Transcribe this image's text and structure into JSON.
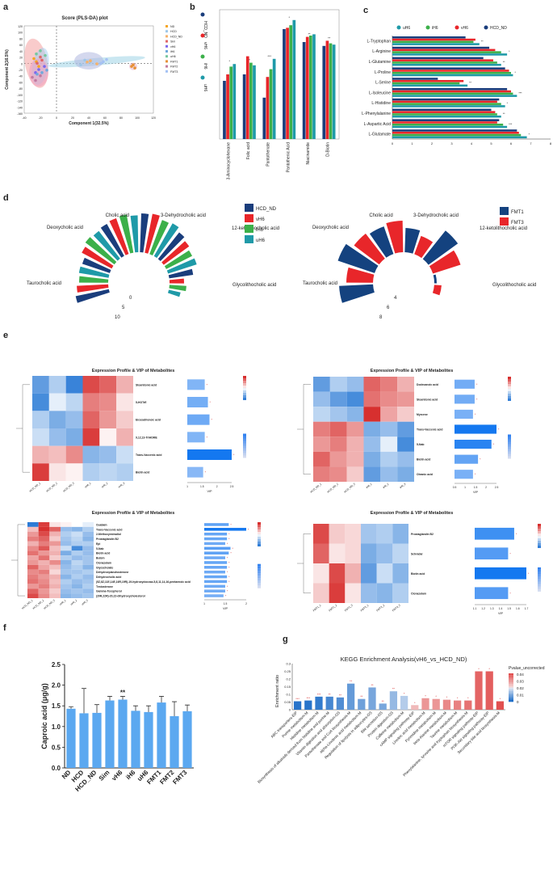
{
  "panel_labels": [
    "a",
    "b",
    "c",
    "d",
    "e",
    "f",
    "g"
  ],
  "colors": {
    "hcd_nd": "#1a3d7c",
    "vh6": "#e8262a",
    "ih6": "#3cb04a",
    "uh6": "#1f9aa8",
    "fmt1": "#14427f",
    "fmt3": "#e8262a",
    "bar_f": "#5ba8f0",
    "heat_red": "#d7302f",
    "heat_blue": "#2c7bd6"
  },
  "chart_data": [
    {
      "id": "a",
      "type": "scatter",
      "title": "Score (PLS-DA) plot",
      "xlabel": "Component 1(32.5%)",
      "ylabel": "Component 2(16.5%)",
      "xlim": [
        -40,
        120
      ],
      "ylim": [
        -160,
        120
      ],
      "xticks": [
        "-40",
        "-20",
        "0",
        "20",
        "40",
        "60",
        "80",
        "100",
        "120"
      ],
      "yticks": [
        "120",
        "100",
        "80",
        "60",
        "40",
        "20",
        "0",
        "-20",
        "-40",
        "-60",
        "-80",
        "-100",
        "-120",
        "-140",
        "-160"
      ],
      "legend": [
        "ND",
        "HCD",
        "HCD_ND",
        "Sim",
        "vH6",
        "iH6",
        "uH6",
        "FMT1",
        "FMT2",
        "FMT3"
      ],
      "series": [
        {
          "name": "ND",
          "x": [
            -28,
            -25,
            -22
          ],
          "y": [
            15,
            5,
            -10
          ]
        },
        {
          "name": "HCD",
          "x": [
            35,
            30,
            42
          ],
          "y": [
            10,
            -5,
            5
          ]
        },
        {
          "name": "HCD_ND",
          "x": [
            42,
            50,
            38
          ],
          "y": [
            8,
            -2,
            4
          ]
        },
        {
          "name": "Sim",
          "x": [
            -20,
            -18,
            -24
          ],
          "y": [
            20,
            10,
            0
          ]
        },
        {
          "name": "vH6",
          "x": [
            -22,
            -15,
            -26
          ],
          "y": [
            -20,
            -10,
            -30
          ]
        },
        {
          "name": "iH6",
          "x": [
            -18,
            -24,
            -12
          ],
          "y": [
            -30,
            -35,
            -22
          ]
        },
        {
          "name": "uH6",
          "x": [
            -25,
            -20,
            -14
          ],
          "y": [
            30,
            40,
            25
          ]
        },
        {
          "name": "FMT1",
          "x": [
            95,
            97,
            93
          ],
          "y": [
            -5,
            -15,
            -10
          ]
        },
        {
          "name": "FMT2",
          "x": [
            -30,
            -26,
            -20
          ],
          "y": [
            -45,
            -55,
            -40
          ]
        },
        {
          "name": "FMT3",
          "x": [
            58,
            62,
            55
          ],
          "y": [
            5,
            12,
            0
          ]
        }
      ]
    },
    {
      "id": "b",
      "type": "bar",
      "categories": [
        "3-Aminocyclohexane",
        "Folic acid",
        "Pantothenate",
        "Pantothenic Acid",
        "Niacinamide",
        "D-Biotin"
      ],
      "legend": [
        "HCD_ND",
        "vH6",
        "iH6",
        "uH6"
      ],
      "series": [
        {
          "name": "HCD_ND",
          "values": [
            4.5,
            5.0,
            3.2,
            8.5,
            7.5,
            7.2
          ]
        },
        {
          "name": "vH6",
          "values": [
            5.0,
            6.4,
            4.8,
            8.6,
            7.9,
            7.6
          ]
        },
        {
          "name": "iH6",
          "values": [
            5.6,
            5.9,
            5.4,
            8.8,
            8.0,
            7.4
          ]
        },
        {
          "name": "uH6",
          "values": [
            5.8,
            5.7,
            6.2,
            9.2,
            8.1,
            7.3
          ]
        }
      ],
      "annotations": [
        "*",
        "*",
        "*",
        "**",
        "***",
        "*",
        "**",
        "**"
      ]
    },
    {
      "id": "c",
      "type": "bar",
      "orientation": "horizontal",
      "legend": [
        "uH6",
        "iH6",
        "vH6",
        "HCD_ND"
      ],
      "categories": [
        "L-Tryptophan",
        "L-Arginine",
        "L-Glutamine",
        "L-Proline",
        "L-Serine",
        "L-Isoleucine",
        "L-Histidine",
        "L-Phenylalanine",
        "L-Aspartic Acid",
        "L-Glutamate"
      ],
      "xticks": [
        "0",
        "1",
        "2",
        "3",
        "4",
        "5",
        "6",
        "7",
        "8"
      ],
      "xlim": [
        0,
        8
      ],
      "series": [
        {
          "name": "HCD_ND",
          "values": [
            3.7,
            4.9,
            4.6,
            5.7,
            2.3,
            5.8,
            5.4,
            5.0,
            5.4,
            6.3
          ]
        },
        {
          "name": "vH6",
          "values": [
            4.2,
            5.2,
            5.1,
            5.9,
            3.6,
            6.0,
            5.3,
            5.2,
            5.3,
            6.4
          ]
        },
        {
          "name": "iH6",
          "values": [
            4.1,
            5.5,
            5.3,
            6.0,
            3.4,
            6.1,
            5.5,
            5.3,
            5.6,
            6.5
          ]
        },
        {
          "name": "uH6",
          "values": [
            4.4,
            5.8,
            5.5,
            6.1,
            3.8,
            6.3,
            5.7,
            5.5,
            5.8,
            6.8
          ]
        }
      ],
      "annotations": [
        "**",
        "*",
        "**",
        "*",
        "**",
        "***",
        "*",
        "**",
        "***",
        "*"
      ]
    },
    {
      "id": "d-left",
      "type": "radial-bar",
      "categories": [
        "Taurocholic acid",
        "Deoxycholic acid",
        "Cholic acid",
        "3-Dehydrocholic acid",
        "12-ketolithocholic acid",
        "Glycolithocholic acid"
      ],
      "legend": [
        "HCD_ND",
        "vH6",
        "iH6",
        "uH6"
      ],
      "series": [
        {
          "name": "HCD_ND",
          "values": [
            7,
            6,
            7.5,
            8,
            7,
            5
          ]
        },
        {
          "name": "vH6",
          "values": [
            6.5,
            7,
            7.8,
            8.2,
            6.5,
            3
          ]
        },
        {
          "name": "iH6",
          "values": [
            6,
            7.5,
            8,
            7.5,
            6,
            3.5
          ]
        },
        {
          "name": "uH6",
          "values": [
            6.2,
            7.2,
            7.6,
            7.8,
            6.2,
            2.5
          ]
        }
      ],
      "ticks": [
        "0",
        "5",
        "10"
      ]
    },
    {
      "id": "d-right",
      "type": "radial-bar",
      "categories": [
        "Taurocholic acid",
        "Deoxycholic acid",
        "Cholic acid",
        "3-Dehydrocholic acid",
        "12-ketolithocholic acid",
        "Glycolithocholic acid"
      ],
      "legend": [
        "FMT1",
        "FMT3"
      ],
      "series": [
        {
          "name": "FMT1",
          "values": [
            7,
            8,
            6,
            5,
            7.5,
            0.5
          ]
        },
        {
          "name": "FMT3",
          "values": [
            5.5,
            6.5,
            6.5,
            4,
            6,
            1.5
          ]
        }
      ],
      "ticks": [
        "4",
        "6",
        "8"
      ]
    },
    {
      "id": "e1",
      "type": "heatmap",
      "title": "Expression Profile & VIP of Metabolites",
      "columns": [
        "HCD_ND_1",
        "HCD_ND_2",
        "HCD_ND_3",
        "vH6_1",
        "vH6_2",
        "vH6_3"
      ],
      "rows": [
        "Stearidonic acid",
        "5-HOTrE",
        "Eicosatrienoic acid",
        "9,12,13-TriHOME",
        "Trans-Vaccenic acid",
        "Biotin acid"
      ],
      "values": [
        [
          -1.2,
          -0.6,
          -1.5,
          1.4,
          1.2,
          0.6
        ],
        [
          -1.4,
          -0.2,
          -0.5,
          1.0,
          0.9,
          0.2
        ],
        [
          -0.6,
          -1.0,
          -0.8,
          1.2,
          0.8,
          0.4
        ],
        [
          -0.4,
          -0.8,
          -1.0,
          1.5,
          0.1,
          0.6
        ],
        [
          0.6,
          0.5,
          0.9,
          -0.9,
          -0.8,
          -0.4
        ],
        [
          1.5,
          0.2,
          0.1,
          -0.6,
          -0.5,
          -0.6
        ]
      ],
      "vip": [
        1.1,
        1.3,
        1.4,
        1.1,
        2.8,
        1.0
      ],
      "vip_ticks": [
        "1",
        "1.5",
        "2",
        "2.5"
      ],
      "vip_label": "VIP"
    },
    {
      "id": "e2",
      "type": "heatmap",
      "title": "Expression Profile & VIP of Metabolites",
      "columns": [
        "HCD_ND_1",
        "HCD_ND_2",
        "HCD_ND_3",
        "iH6_1",
        "iH6_2",
        "iH6_3"
      ],
      "rows": [
        "Dodecanoic acid",
        "Stearidonic acid",
        "Myrcene",
        "Trans-Vaccenic acid",
        "5-Nab",
        "Biotin acid",
        "Oleanic acid"
      ],
      "values": [
        [
          -1.2,
          -0.6,
          -0.8,
          1.2,
          1.0,
          0.6
        ],
        [
          -0.8,
          -1.2,
          -1.4,
          1.1,
          0.9,
          0.8
        ],
        [
          -0.5,
          -0.7,
          -0.9,
          1.6,
          0.7,
          0.4
        ],
        [
          1.0,
          1.2,
          0.8,
          -1.0,
          -0.8,
          -1.2
        ],
        [
          0.8,
          1.0,
          0.6,
          -0.8,
          -0.2,
          -1.4
        ],
        [
          1.2,
          0.8,
          0.6,
          -1.0,
          -0.6,
          -0.8
        ],
        [
          1.0,
          0.9,
          0.4,
          -1.2,
          -0.8,
          -1.0
        ]
      ],
      "vip": [
        1.2,
        1.2,
        1.1,
        2.5,
        2.2,
        1.4,
        1.1
      ],
      "vip_ticks": [
        "0.5",
        "1",
        "1.5",
        "2",
        "2.5"
      ],
      "vip_label": "VIP"
    },
    {
      "id": "e3",
      "type": "heatmap",
      "title": "Expression Profile & VIP of Metabolites",
      "columns": [
        "HCD_ND_1",
        "HCD_ND_2",
        "HCD_ND_3",
        "uH6_1",
        "uH6_2",
        "uH6_3"
      ],
      "rows": [
        "Ouabain",
        "Trans-Vaccenic acid",
        "2-Methoxyestradiol",
        "Prostaglandin B2",
        "Epi",
        "5-Nab",
        "Biotin acid",
        "Butein",
        "Clonazolam",
        "Glycocholate",
        "Dehydroepiandrosterone",
        "Dehydrocholic acid",
        "(5Z,8Z,11E,14E,16R,19R)-19-hydroxydocosa-5,8,11,14,16-pentaenoic acid",
        "Testosterone",
        "Gamma-Tocopherol",
        "(20R,22R)-20,22-dihydroxycholesterol"
      ],
      "values": [
        [
          -1.8,
          1.5,
          0.2,
          0.1,
          0.0,
          -0.2
        ],
        [
          0.5,
          1.6,
          1.2,
          -0.8,
          -0.9,
          -0.6
        ],
        [
          0.8,
          1.4,
          0.6,
          -0.6,
          -0.4,
          -0.8
        ],
        [
          1.0,
          1.2,
          0.4,
          -0.7,
          -0.5,
          -0.9
        ],
        [
          0.6,
          1.0,
          0.8,
          -0.8,
          -0.6,
          -0.6
        ],
        [
          0.9,
          1.3,
          0.5,
          -0.4,
          -1.4,
          -0.8
        ],
        [
          1.1,
          0.8,
          0.6,
          -1.0,
          -0.6,
          -0.8
        ],
        [
          0.7,
          1.1,
          0.4,
          -0.6,
          -0.8,
          -0.7
        ],
        [
          0.8,
          0.6,
          0.9,
          -0.9,
          -0.5,
          -0.7
        ],
        [
          1.2,
          0.7,
          0.5,
          -0.8,
          -0.6,
          -0.9
        ],
        [
          0.9,
          1.0,
          0.3,
          -0.7,
          -0.7,
          -0.6
        ],
        [
          1.0,
          0.8,
          0.6,
          -0.9,
          -0.6,
          -0.8
        ],
        [
          1.1,
          0.9,
          0.5,
          -0.6,
          -0.8,
          -0.7
        ],
        [
          0.8,
          1.0,
          0.6,
          -0.7,
          -0.9,
          -0.6
        ],
        [
          1.2,
          0.8,
          0.4,
          -0.8,
          -0.7,
          -0.8
        ],
        [
          1.4,
          0.9,
          0.5,
          -0.9,
          -0.8,
          -0.7
        ]
      ],
      "vip": [
        1.4,
        2.4,
        1.3,
        1.3,
        1.2,
        1.5,
        1.4,
        1.2,
        1.3,
        1.3,
        1.2,
        1.3,
        1.3,
        1.2,
        1.2,
        1.1
      ],
      "vip_ticks": [
        "1",
        "1.5",
        "2"
      ],
      "vip_label": "VIP"
    },
    {
      "id": "e4",
      "type": "heatmap",
      "title": "Expression Profile & VIP of Metabolites",
      "columns": [
        "FMT1_1",
        "FMT1_2",
        "FMT1_3",
        "FMT3_1",
        "FMT3_2",
        "FMT3_3"
      ],
      "rows": [
        "Prostaglandin B2",
        "Schradar",
        "Biotin acid",
        "Clonazolam"
      ],
      "values": [
        [
          1.4,
          0.4,
          0.3,
          -0.7,
          -0.6,
          -0.9
        ],
        [
          1.2,
          0.2,
          0.3,
          -1.0,
          -0.8,
          -0.5
        ],
        [
          0.2,
          1.4,
          0.6,
          -1.2,
          -0.4,
          -0.9
        ],
        [
          0.4,
          1.5,
          0.2,
          -0.8,
          -0.9,
          -0.6
        ]
      ],
      "vip": [
        1.3,
        1.1,
        1.7,
        1.1
      ],
      "vip_ticks": [
        "1.1",
        "1.2",
        "1.3",
        "1.4",
        "1.5",
        "1.6",
        "1.7"
      ],
      "vip_label": "VIP"
    },
    {
      "id": "f",
      "type": "bar",
      "ylabel": "Caproic acid (μg/g)",
      "categories": [
        "ND",
        "HCD",
        "HCD_ND",
        "Sim",
        "vH6",
        "iH6",
        "uH6",
        "FMT1",
        "FMT2",
        "FMT3"
      ],
      "values": [
        1.43,
        1.32,
        1.33,
        1.63,
        1.65,
        1.38,
        1.35,
        1.58,
        1.25,
        1.37
      ],
      "errors": [
        0.05,
        0.6,
        0.2,
        0.1,
        0.08,
        0.12,
        0.15,
        0.15,
        0.35,
        0.15
      ],
      "ylim": [
        0,
        2.5
      ],
      "yticks": [
        "0.0",
        "0.5",
        "1.0",
        "1.5",
        "2.0",
        "2.5"
      ],
      "annotations": [
        {
          "index": 4,
          "text": "**"
        }
      ]
    },
    {
      "id": "g",
      "type": "bar",
      "title": "KEGG Enrichment Analysis(vH6_vs_HCD_ND)",
      "ylabel": "Enrichment ratio",
      "legend_title": "Pvalue_uncorrected",
      "legend_ticks": [
        "0.04",
        "0.03",
        "0.02",
        "0.01",
        "0"
      ],
      "ylim": [
        0,
        0.3
      ],
      "categories": [
        "ABC transporters-EIP",
        "Purine metabolism-M",
        "Histidine metabolism-M",
        "Biosynthesis of alkaloids derived from histidine and purine-M",
        "Vitamin digestion and absorption-OS",
        "Pantothenate and CoA biosynthesis-M",
        "alpha-Linolenic acid metabolism-M",
        "Regulation of lipolysis in adipocytes-OS",
        "Bile secretion-OS",
        "Protein digestion-OS",
        "Caffeine metabolism-M",
        "cAMP signaling pathway-EIP",
        "Linoleic acid metabolism-M",
        "Pyrimidine metabolism-M",
        "beta-Alanine metabolism-M",
        "Taurine metabolism-M",
        "Phenylalanine, tyrosine and tryptophan biosynthesis-M",
        "mTOR signaling pathway-EIP",
        "PI3K-Akt signaling pathway-EIP",
        "Secondary bile acid biosynthesis-M"
      ],
      "values": [
        0.055,
        0.06,
        0.085,
        0.085,
        0.08,
        0.17,
        0.07,
        0.145,
        0.04,
        0.12,
        0.09,
        0.03,
        0.075,
        0.07,
        0.065,
        0.06,
        0.06,
        0.25,
        0.25,
        0.055
      ],
      "pvalues": [
        0.001,
        0.001,
        0.002,
        0.004,
        0.005,
        0.007,
        0.008,
        0.009,
        0.009,
        0.012,
        0.015,
        0.025,
        0.03,
        0.03,
        0.032,
        0.033,
        0.035,
        0.037,
        0.038,
        0.04
      ],
      "annotations": [
        "***",
        "***",
        "***",
        "**",
        "**",
        "**",
        "**",
        "**",
        "**",
        "**",
        "*",
        "*",
        "*",
        "*",
        "*",
        "*",
        "*",
        "*",
        "*",
        "*"
      ],
      "yticks": [
        "0",
        "0.05",
        "0.1",
        "0.15",
        "0.2",
        "0.25",
        "0.3"
      ]
    }
  ]
}
